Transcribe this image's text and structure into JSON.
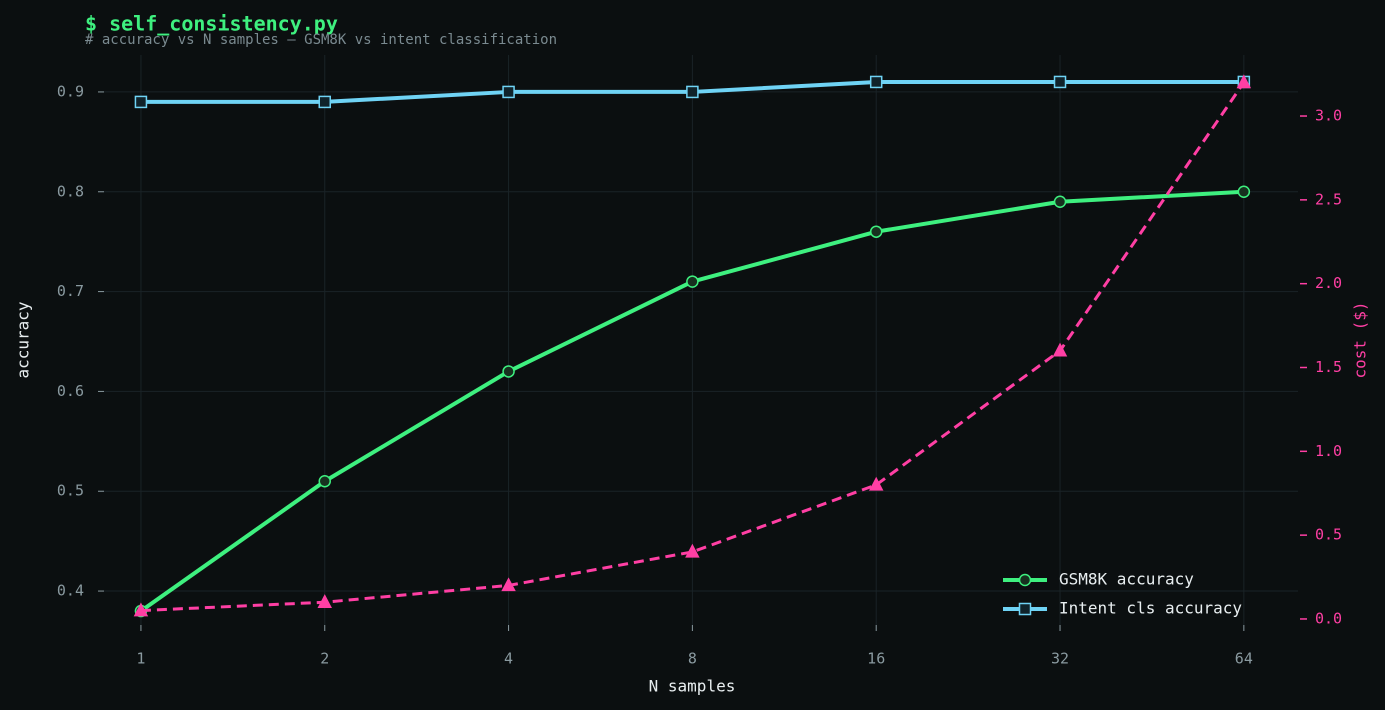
{
  "chart_data": {
    "type": "line",
    "title": "$ self_consistency.py",
    "subtitle": "# accuracy vs N samples — GSM8K vs intent classification",
    "xlabel": "N samples",
    "ylabel": "accuracy",
    "y2label": "cost ($)",
    "x": [
      1,
      2,
      4,
      8,
      16,
      32,
      64
    ],
    "xlog": true,
    "xlim": [
      0.87,
      78.5
    ],
    "xticks": [
      1,
      2,
      4,
      8,
      16,
      32,
      64
    ],
    "ylim": [
      0.366,
      0.937
    ],
    "yticks": [
      0.4,
      0.5,
      0.6,
      0.7,
      0.8,
      0.9
    ],
    "y2lim": [
      -0.036,
      3.364
    ],
    "y2ticks": [
      {
        "value": 0,
        "label": "0.0"
      },
      0.5,
      {
        "value": 1,
        "label": "1.0"
      },
      1.5,
      {
        "value": 2,
        "label": "2.0"
      },
      2.5,
      {
        "value": 3,
        "label": "3.0"
      }
    ],
    "y2color": "#ff3fa4",
    "grid": true,
    "legend": "lower right",
    "series": [
      {
        "name": "GSM8K accuracy",
        "color": "#3ef07f",
        "marker": "circle",
        "linestyle": "solid",
        "values": [
          0.38,
          0.51,
          0.62,
          0.71,
          0.76,
          0.79,
          0.8
        ]
      },
      {
        "name": "Intent cls accuracy",
        "color": "#6fd3f5",
        "marker": "square",
        "linestyle": "solid",
        "values": [
          0.89,
          0.89,
          0.9,
          0.9,
          0.91,
          0.91,
          0.91
        ]
      },
      {
        "color": "#ff3fa4",
        "marker": "triangle",
        "linestyle": "dashed",
        "axis": "y2",
        "values": [
          0.05,
          0.1,
          0.2,
          0.4,
          0.8,
          1.6,
          3.2
        ]
      }
    ]
  }
}
